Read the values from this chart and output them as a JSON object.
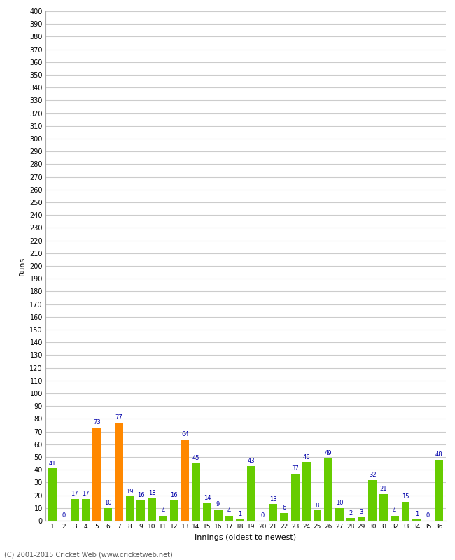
{
  "innings": [
    1,
    2,
    3,
    4,
    5,
    6,
    7,
    8,
    9,
    10,
    11,
    12,
    13,
    14,
    15,
    16,
    17,
    18,
    19,
    20,
    21,
    22,
    23,
    24,
    25,
    26,
    27,
    28,
    29,
    30,
    31,
    32,
    33,
    34,
    35,
    36
  ],
  "runs": [
    41,
    0,
    17,
    17,
    73,
    10,
    77,
    19,
    16,
    18,
    4,
    16,
    64,
    45,
    14,
    9,
    4,
    1,
    43,
    0,
    13,
    6,
    37,
    46,
    8,
    49,
    10,
    2,
    3,
    32,
    21,
    4,
    15,
    1,
    0,
    48
  ],
  "orange_innings": [
    5,
    7,
    13
  ],
  "green_color": "#66cc00",
  "orange_color": "#ff8800",
  "bar_label_color": "#0000aa",
  "bg_color": "#ffffff",
  "grid_color": "#cccccc",
  "ylabel": "Runs",
  "xlabel": "Innings (oldest to newest)",
  "footer": "(C) 2001-2015 Cricket Web (www.cricketweb.net)",
  "ylim": [
    0,
    400
  ],
  "yticks": [
    0,
    10,
    20,
    30,
    40,
    50,
    60,
    70,
    80,
    90,
    100,
    110,
    120,
    130,
    140,
    150,
    160,
    170,
    180,
    190,
    200,
    210,
    220,
    230,
    240,
    250,
    260,
    270,
    280,
    290,
    300,
    310,
    320,
    330,
    340,
    350,
    360,
    370,
    380,
    390,
    400
  ],
  "figsize": [
    6.5,
    8.0
  ],
  "dpi": 100
}
